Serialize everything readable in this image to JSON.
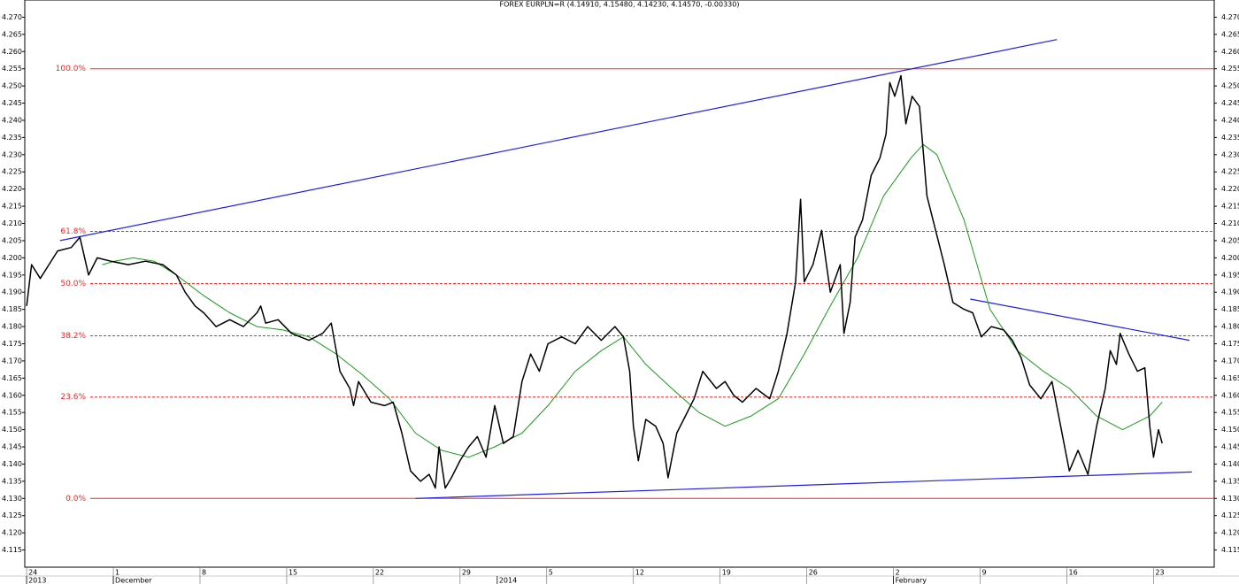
{
  "chart_data": {
    "type": "line",
    "title": "FOREX EURPLN=R (4.14910, 4.15480, 4.14230, 4.14570, -0.00330)",
    "xlim": [
      -0.15,
      95.9
    ],
    "ylim": [
      4.11,
      4.275
    ],
    "xticks": [
      {
        "value": 0,
        "label": "24"
      },
      {
        "value": 7,
        "label": "1"
      },
      {
        "value": 14,
        "label": "8"
      },
      {
        "value": 21,
        "label": "15"
      },
      {
        "value": 28,
        "label": "22"
      },
      {
        "value": 35,
        "label": "29"
      },
      {
        "value": 42,
        "label": "5"
      },
      {
        "value": 49,
        "label": "12"
      },
      {
        "value": 56,
        "label": "19"
      },
      {
        "value": 63,
        "label": "26"
      },
      {
        "value": 70,
        "label": "2"
      },
      {
        "value": 77,
        "label": "9"
      },
      {
        "value": 84,
        "label": "16"
      },
      {
        "value": 91,
        "label": "23"
      }
    ],
    "x_period_labels": [
      {
        "value": 0,
        "label": "2013"
      },
      {
        "value": 7,
        "label": "December"
      },
      {
        "value": 38,
        "label": "2014"
      },
      {
        "value": 70,
        "label": "February"
      }
    ],
    "yticks": [
      4.115,
      {
        "value": 4.12,
        "label": "4.120"
      },
      4.125,
      {
        "value": 4.13,
        "label": "4.130"
      },
      4.135,
      {
        "value": 4.14,
        "label": "4.140"
      },
      4.145,
      {
        "value": 4.15,
        "label": "4.150"
      },
      4.155,
      {
        "value": 4.16,
        "label": "4.160"
      },
      4.165,
      {
        "value": 4.17,
        "label": "4.170"
      },
      4.175,
      {
        "value": 4.18,
        "label": "4.180"
      },
      4.185,
      {
        "value": 4.19,
        "label": "4.190"
      },
      4.195,
      {
        "value": 4.2,
        "label": "4.200"
      },
      4.205,
      {
        "value": 4.21,
        "label": "4.210"
      },
      4.215,
      {
        "value": 4.22,
        "label": "4.220"
      },
      4.225,
      {
        "value": 4.23,
        "label": "4.230"
      },
      4.235,
      {
        "value": 4.24,
        "label": "4.240"
      },
      4.245,
      {
        "value": 4.25,
        "label": "4.250"
      },
      4.255,
      {
        "value": 4.26,
        "label": "4.260"
      },
      4.265,
      {
        "value": 4.27,
        "label": "4.270"
      }
    ],
    "series": [
      {
        "color": "#000000",
        "x": [
          0,
          0.4,
          1.1,
          1.8,
          2.5,
          3.6,
          4.3,
          5.0,
          5.7,
          6.8,
          8.2,
          9.6,
          11.0,
          12.1,
          12.8,
          13.6,
          14.3,
          15.3,
          16.4,
          17.5,
          18.6,
          18.9,
          19.3,
          20.3,
          21.4,
          22.8,
          23.9,
          24.6,
          25.3,
          26.1,
          26.4,
          26.8,
          27.8,
          28.9,
          29.6,
          30.3,
          31.0,
          31.8,
          32.5,
          33.0,
          33.3,
          33.8,
          34.3,
          35.0,
          35.7,
          36.4,
          37.1,
          37.8,
          38.5,
          39.3,
          40.0,
          40.7,
          41.4,
          42.1,
          43.2,
          44.3,
          45.3,
          46.4,
          47.5,
          48.2,
          48.7,
          49.0,
          49.4,
          50.0,
          50.8,
          51.4,
          51.8,
          52.5,
          53.2,
          53.9,
          54.6,
          55.7,
          56.4,
          57.1,
          57.8,
          58.9,
          60.0,
          60.7,
          61.4,
          62.1,
          62.5,
          62.8,
          63.5,
          64.2,
          64.9,
          65.7,
          66.0,
          66.5,
          66.9,
          67.5,
          68.2,
          68.9,
          69.4,
          69.7,
          70.1,
          70.6,
          71.0,
          71.5,
          72.1,
          72.7,
          73.4,
          74.1,
          74.8,
          75.7,
          76.4,
          77.1,
          77.9,
          78.9,
          79.6,
          80.3,
          81.0,
          81.9,
          82.8,
          83.5,
          84.2,
          84.9,
          85.7,
          86.4,
          87.1,
          87.5,
          88.0,
          88.3,
          89.0,
          89.7,
          90.3,
          90.7,
          91.0,
          91.4,
          91.7
        ],
        "values": [
          4.186,
          4.198,
          4.194,
          4.198,
          4.202,
          4.203,
          4.206,
          4.195,
          4.2,
          4.199,
          4.198,
          4.199,
          4.198,
          4.195,
          4.19,
          4.186,
          4.184,
          4.18,
          4.182,
          4.18,
          4.184,
          4.186,
          4.181,
          4.182,
          4.178,
          4.176,
          4.178,
          4.181,
          4.167,
          4.162,
          4.157,
          4.164,
          4.158,
          4.157,
          4.158,
          4.149,
          4.138,
          4.135,
          4.137,
          4.133,
          4.145,
          4.133,
          4.136,
          4.141,
          4.145,
          4.148,
          4.142,
          4.157,
          4.146,
          4.148,
          4.164,
          4.172,
          4.167,
          4.175,
          4.177,
          4.175,
          4.18,
          4.176,
          4.18,
          4.177,
          4.167,
          4.151,
          4.141,
          4.153,
          4.151,
          4.146,
          4.136,
          4.149,
          4.154,
          4.159,
          4.167,
          4.162,
          4.164,
          4.16,
          4.158,
          4.162,
          4.159,
          4.167,
          4.178,
          4.193,
          4.217,
          4.193,
          4.198,
          4.208,
          4.19,
          4.198,
          4.178,
          4.187,
          4.206,
          4.211,
          4.224,
          4.229,
          4.236,
          4.251,
          4.247,
          4.253,
          4.239,
          4.247,
          4.244,
          4.218,
          4.208,
          4.198,
          4.187,
          4.185,
          4.184,
          4.177,
          4.18,
          4.179,
          4.176,
          4.171,
          4.163,
          4.159,
          4.164,
          4.151,
          4.138,
          4.144,
          4.137,
          4.151,
          4.162,
          4.173,
          4.169,
          4.178,
          4.172,
          4.167,
          4.168,
          4.151,
          4.142,
          4.15,
          4.146
        ]
      },
      {
        "color": "#1a9a1a",
        "x": [
          6.1,
          7.1,
          8.6,
          10.3,
          12.1,
          14.3,
          16.4,
          18.6,
          20.7,
          22.8,
          25.0,
          27.1,
          29.3,
          31.4,
          33.5,
          35.7,
          37.8,
          40.0,
          42.1,
          44.3,
          46.4,
          48.2,
          50.0,
          52.1,
          54.3,
          56.4,
          58.5,
          60.7,
          62.8,
          64.9,
          67.1,
          69.2,
          71.4,
          72.4,
          73.5,
          75.7,
          77.8,
          80.0,
          82.1,
          84.2,
          86.4,
          88.5,
          90.7,
          91.7
        ],
        "values": [
          4.198,
          4.199,
          4.2,
          4.199,
          4.195,
          4.189,
          4.184,
          4.18,
          4.179,
          4.177,
          4.172,
          4.166,
          4.159,
          4.149,
          4.144,
          4.142,
          4.145,
          4.149,
          4.157,
          4.167,
          4.173,
          4.177,
          4.169,
          4.162,
          4.155,
          4.151,
          4.154,
          4.159,
          4.172,
          4.186,
          4.2,
          4.218,
          4.229,
          4.233,
          4.23,
          4.211,
          4.185,
          4.173,
          4.167,
          4.162,
          4.154,
          4.15,
          4.154,
          4.158
        ]
      }
    ],
    "trendlines": [
      {
        "color": "#2020e0",
        "x": [
          2.7,
          83.2
        ],
        "values": [
          4.205,
          4.2635
        ]
      },
      {
        "color": "#2020e0",
        "x": [
          31.4,
          94.1
        ],
        "values": [
          4.13,
          4.1377
        ]
      },
      {
        "color": "#2020e0",
        "x": [
          76.2,
          93.9
        ],
        "values": [
          4.188,
          4.176
        ]
      }
    ],
    "fib_color": "#ff2020",
    "fib_levels": [
      {
        "value": 4.255,
        "label": "100.0%",
        "dashed": false
      },
      {
        "value": 4.2077,
        "label": "61.8%",
        "dashed": true
      },
      {
        "value": 4.1925,
        "label": "50.0%",
        "dashed": true
      },
      {
        "value": 4.1773,
        "label": "38.2%",
        "dashed": true
      },
      {
        "value": 4.1595,
        "label": "23.6%",
        "dashed": true
      },
      {
        "value": 4.13,
        "label": "0.0%",
        "dashed": false
      }
    ]
  }
}
